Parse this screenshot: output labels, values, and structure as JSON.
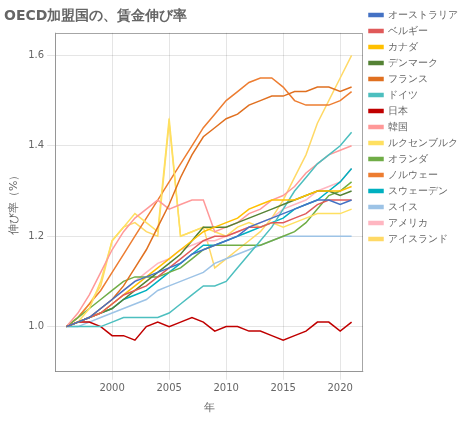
{
  "chart_data": {
    "type": "line",
    "title": "OECD加盟国の、賃金伸び率",
    "xlabel": "年",
    "ylabel": "伸び率（%）",
    "x": [
      1996,
      1997,
      1998,
      1999,
      2000,
      2001,
      2002,
      2003,
      2004,
      2005,
      2006,
      2007,
      2008,
      2009,
      2010,
      2011,
      2012,
      2013,
      2014,
      2015,
      2016,
      2017,
      2018,
      2019,
      2020,
      2021
    ],
    "series": [
      {
        "name": "オーストラリア",
        "color": "#4472C4",
        "values": [
          1.0,
          1.01,
          1.02,
          1.04,
          1.06,
          1.08,
          1.1,
          1.11,
          1.12,
          1.13,
          1.14,
          1.16,
          1.17,
          1.18,
          1.19,
          1.2,
          1.22,
          1.23,
          1.24,
          1.25,
          1.26,
          1.27,
          1.28,
          1.28,
          1.27,
          1.28
        ]
      },
      {
        "name": "ベルギー",
        "color": "#E05A5A",
        "values": [
          1.0,
          1.01,
          1.02,
          1.03,
          1.05,
          1.07,
          1.08,
          1.09,
          1.11,
          1.13,
          1.15,
          1.17,
          1.19,
          1.2,
          1.2,
          1.21,
          1.22,
          1.22,
          1.23,
          1.23,
          1.24,
          1.25,
          1.27,
          1.28,
          1.28,
          1.28
        ]
      },
      {
        "name": "カナダ",
        "color": "#FFC000",
        "values": [
          1.0,
          1.01,
          1.02,
          1.03,
          1.05,
          1.07,
          1.09,
          1.11,
          1.13,
          1.15,
          1.17,
          1.19,
          1.21,
          1.22,
          1.23,
          1.24,
          1.26,
          1.27,
          1.28,
          1.28,
          1.28,
          1.29,
          1.3,
          1.3,
          1.3,
          1.31
        ]
      },
      {
        "name": "デンマーク",
        "color": "#548235",
        "values": [
          1.0,
          1.01,
          1.02,
          1.03,
          1.04,
          1.06,
          1.08,
          1.1,
          1.12,
          1.14,
          1.16,
          1.19,
          1.22,
          1.22,
          1.22,
          1.23,
          1.24,
          1.25,
          1.26,
          1.27,
          1.28,
          1.29,
          1.3,
          1.3,
          1.29,
          1.3
        ]
      },
      {
        "name": "フランス",
        "color": "#E07020",
        "values": [
          1.0,
          1.01,
          1.02,
          1.04,
          1.06,
          1.09,
          1.13,
          1.17,
          1.22,
          1.27,
          1.33,
          1.38,
          1.42,
          1.44,
          1.46,
          1.47,
          1.49,
          1.5,
          1.51,
          1.51,
          1.52,
          1.52,
          1.53,
          1.53,
          1.52,
          1.53
        ]
      },
      {
        "name": "ドイツ",
        "color": "#4DBFBF",
        "values": [
          1.0,
          1.0,
          1.0,
          1.0,
          1.01,
          1.02,
          1.02,
          1.02,
          1.02,
          1.03,
          1.05,
          1.07,
          1.09,
          1.09,
          1.1,
          1.13,
          1.16,
          1.19,
          1.22,
          1.26,
          1.3,
          1.33,
          1.36,
          1.38,
          1.4,
          1.43
        ]
      },
      {
        "name": "日本",
        "color": "#C00000",
        "values": [
          1.0,
          1.01,
          1.01,
          1.0,
          0.98,
          0.98,
          0.97,
          1.0,
          1.01,
          1.0,
          1.01,
          1.02,
          1.01,
          0.99,
          1.0,
          1.0,
          0.99,
          0.99,
          0.98,
          0.97,
          0.98,
          0.99,
          1.01,
          1.01,
          0.99,
          1.01
        ]
      },
      {
        "name": "韓国",
        "color": "#FF9999",
        "values": [
          1.0,
          1.03,
          1.07,
          1.12,
          1.17,
          1.21,
          1.24,
          1.26,
          1.28,
          1.26,
          1.27,
          1.28,
          1.28,
          1.21,
          1.22,
          1.23,
          1.25,
          1.26,
          1.28,
          1.29,
          1.31,
          1.34,
          1.36,
          1.38,
          1.39,
          1.4
        ]
      },
      {
        "name": "ルクセンブルク",
        "color": "#FFE060",
        "values": [
          1.0,
          1.01,
          1.04,
          1.1,
          1.19,
          1.22,
          1.25,
          1.23,
          1.21,
          1.46,
          1.2,
          1.21,
          1.22,
          1.21,
          1.2,
          1.22,
          1.23,
          1.22,
          1.23,
          1.22,
          1.23,
          1.24,
          1.25,
          1.25,
          1.25,
          1.26
        ]
      },
      {
        "name": "オランダ",
        "color": "#70AD47",
        "values": [
          1.0,
          1.02,
          1.04,
          1.06,
          1.08,
          1.1,
          1.11,
          1.11,
          1.11,
          1.12,
          1.13,
          1.15,
          1.17,
          1.18,
          1.18,
          1.18,
          1.18,
          1.18,
          1.19,
          1.2,
          1.21,
          1.23,
          1.26,
          1.29,
          1.3,
          1.32
        ]
      },
      {
        "name": "ノルウェー",
        "color": "#ED7D31",
        "values": [
          1.0,
          1.02,
          1.05,
          1.08,
          1.12,
          1.16,
          1.2,
          1.24,
          1.28,
          1.32,
          1.36,
          1.4,
          1.44,
          1.47,
          1.5,
          1.52,
          1.54,
          1.55,
          1.55,
          1.53,
          1.5,
          1.49,
          1.49,
          1.49,
          1.5,
          1.52
        ]
      },
      {
        "name": "スウェーデン",
        "color": "#00B0C0",
        "values": [
          1.0,
          1.01,
          1.02,
          1.03,
          1.04,
          1.06,
          1.07,
          1.08,
          1.1,
          1.12,
          1.14,
          1.16,
          1.18,
          1.18,
          1.19,
          1.2,
          1.21,
          1.22,
          1.23,
          1.24,
          1.26,
          1.27,
          1.28,
          1.3,
          1.32,
          1.35
        ]
      },
      {
        "name": "スイス",
        "color": "#9DC3E6",
        "values": [
          1.0,
          1.0,
          1.01,
          1.02,
          1.03,
          1.04,
          1.05,
          1.06,
          1.08,
          1.09,
          1.1,
          1.11,
          1.12,
          1.14,
          1.15,
          1.16,
          1.17,
          1.18,
          1.19,
          1.2,
          1.2,
          1.2,
          1.2,
          1.2,
          1.2,
          1.2
        ]
      },
      {
        "name": "アメリカ",
        "color": "#FFB6C1",
        "values": [
          1.0,
          1.01,
          1.02,
          1.04,
          1.06,
          1.08,
          1.1,
          1.12,
          1.14,
          1.15,
          1.17,
          1.18,
          1.19,
          1.19,
          1.2,
          1.21,
          1.22,
          1.23,
          1.24,
          1.26,
          1.27,
          1.28,
          1.3,
          1.31,
          1.32,
          1.35
        ]
      },
      {
        "name": "アイスランド",
        "color": "#FFD966",
        "values": [
          1.0,
          1.02,
          1.05,
          1.09,
          1.19,
          1.22,
          1.23,
          1.21,
          1.2,
          1.45,
          1.2,
          1.21,
          1.22,
          1.13,
          1.15,
          1.17,
          1.19,
          1.21,
          1.24,
          1.28,
          1.33,
          1.38,
          1.45,
          1.5,
          1.55,
          1.6
        ]
      }
    ],
    "xlim": [
      1995,
      2022
    ],
    "xticks": [
      2000,
      2005,
      2010,
      2015,
      2020
    ],
    "ylim": [
      0.9,
      1.65
    ],
    "yticks": [
      {
        "value": 1.0,
        "label": "1.0"
      },
      {
        "value": 1.2,
        "label": "1.2"
      },
      {
        "value": 1.4,
        "label": "1.4"
      },
      {
        "value": 1.6,
        "label": "1.6"
      }
    ],
    "grid": true,
    "legend": "right"
  }
}
